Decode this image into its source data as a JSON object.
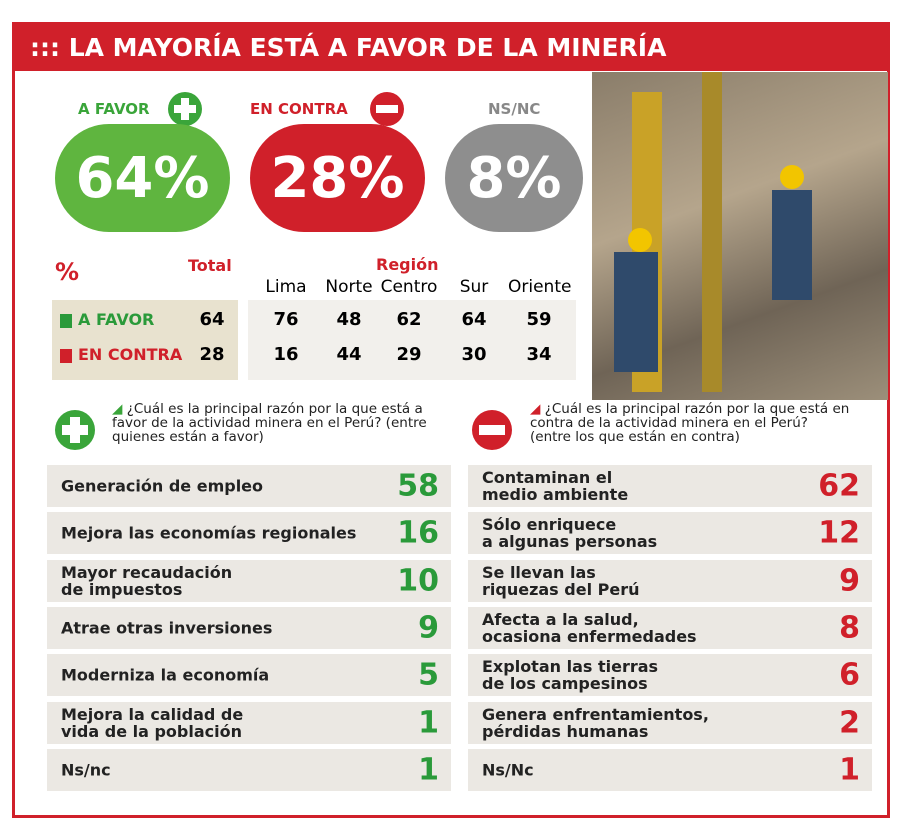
{
  "title": "::: LA MAYORÍA ESTÁ A FAVOR DE LA MINERÍA",
  "summary": [
    {
      "label": "A FAVOR",
      "value": "64%"
    },
    {
      "label": "EN CONTRA",
      "value": "28%"
    },
    {
      "label": "NS/NC",
      "value": "8%"
    }
  ],
  "region_table": {
    "unit": "%",
    "total_header": "Total",
    "group_header": "Región",
    "columns": [
      "Lima",
      "Norte",
      "Centro",
      "Sur",
      "Oriente"
    ],
    "rows": [
      {
        "label": "A FAVOR",
        "total": 64,
        "values": [
          76,
          48,
          62,
          64,
          59
        ]
      },
      {
        "label": "EN CONTRA",
        "total": 28,
        "values": [
          16,
          44,
          29,
          30,
          34
        ]
      }
    ]
  },
  "favor": {
    "question": "¿Cuál es la principal razón por la que está a favor de la actividad minera en el Perú? (entre quienes están a favor)",
    "items": [
      {
        "label": "Generación de empleo",
        "value": 58
      },
      {
        "label": "Mejora las economías regionales",
        "value": 16
      },
      {
        "label": "Mayor recaudación\nde impuestos",
        "value": 10
      },
      {
        "label": "Atrae otras inversiones",
        "value": 9
      },
      {
        "label": "Moderniza la economía",
        "value": 5
      },
      {
        "label": "Mejora la calidad de\nvida de la población",
        "value": 1
      },
      {
        "label": "Ns/nc",
        "value": 1
      }
    ]
  },
  "contra": {
    "question": "¿Cuál es la principal razón por la que está en contra de la actividad minera en el Perú? (entre los que están en contra)",
    "items": [
      {
        "label": "Contaminan el\nmedio ambiente",
        "value": 62
      },
      {
        "label": "Sólo enriquece\na algunas personas",
        "value": 12
      },
      {
        "label": "Se llevan las\nriquezas del Perú",
        "value": 9
      },
      {
        "label": "Afecta a la salud,\nocasiona enfermedades",
        "value": 8
      },
      {
        "label": "Explotan las tierras\nde los campesinos",
        "value": 6
      },
      {
        "label": "Genera enfrentamientos,\npérdidas humanas",
        "value": 2
      },
      {
        "label": "Ns/Nc",
        "value": 1
      }
    ]
  }
}
